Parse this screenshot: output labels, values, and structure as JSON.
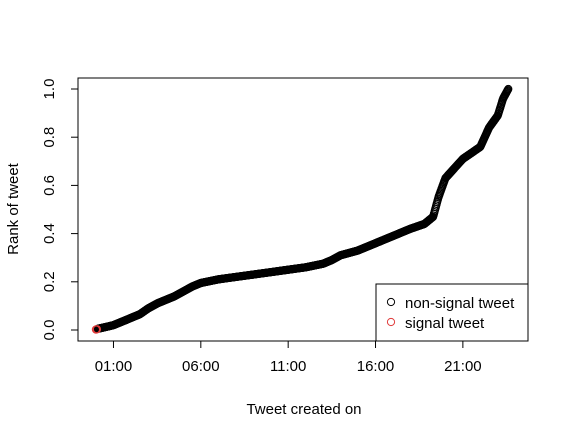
{
  "chart_data": {
    "type": "scatter",
    "title": "",
    "xlabel": "Tweet created on",
    "ylabel": "Rank of tweet",
    "xlim": [
      "23:00",
      "24:00"
    ],
    "ylim": [
      0,
      1
    ],
    "x_ticks": [
      "01:00",
      "06:00",
      "11:00",
      "16:00",
      "21:00"
    ],
    "y_ticks": [
      "0.0",
      "0.2",
      "0.4",
      "0.6",
      "0.8",
      "1.0"
    ],
    "grid": false,
    "legend": {
      "position": "bottom-right",
      "entries": [
        {
          "label": "non-signal tweet",
          "color": "#000000",
          "marker": "open-circle"
        },
        {
          "label": "signal tweet",
          "color": "#df3a3a",
          "marker": "open-circle"
        }
      ]
    },
    "series": [
      {
        "name": "non-signal tweet",
        "color": "#000000",
        "curve_x_hours": [
          0.1,
          0.6,
          1.0,
          1.5,
          2.0,
          2.5,
          3.0,
          3.5,
          4.0,
          4.5,
          5.0,
          5.5,
          6.0,
          7.0,
          8.0,
          9.0,
          10.0,
          11.0,
          12.0,
          13.0,
          13.5,
          14.0,
          15.0,
          16.0,
          17.0,
          18.0,
          18.8,
          19.3,
          19.6,
          20.0,
          20.5,
          21.0,
          22.0,
          22.5,
          23.0,
          23.3,
          23.6
        ],
        "curve_rank": [
          0.005,
          0.013,
          0.02,
          0.035,
          0.05,
          0.065,
          0.09,
          0.11,
          0.125,
          0.14,
          0.16,
          0.18,
          0.195,
          0.21,
          0.22,
          0.23,
          0.24,
          0.25,
          0.26,
          0.275,
          0.29,
          0.31,
          0.33,
          0.36,
          0.39,
          0.42,
          0.44,
          0.47,
          0.55,
          0.63,
          0.67,
          0.71,
          0.76,
          0.84,
          0.89,
          0.96,
          1.0
        ]
      },
      {
        "name": "signal tweet",
        "color": "#df3a3a",
        "x_hours": [
          0.0,
          0.05
        ],
        "rank": [
          0.002,
          0.003
        ]
      }
    ]
  }
}
